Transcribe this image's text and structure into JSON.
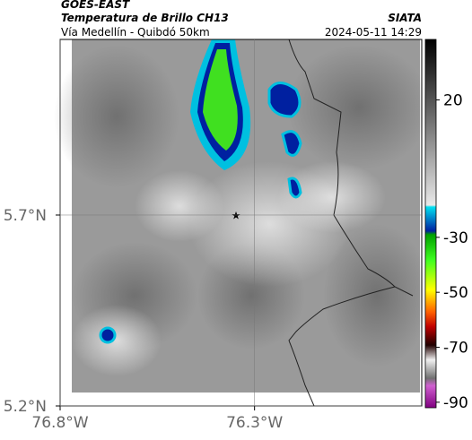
{
  "header": {
    "satellite": "GOES-EAST",
    "title": "Temperatura de Brillo CH13",
    "source": "SIATA",
    "subtitle": "Vía Medellín - Quibdó 50km",
    "datetime": "2024-05-11 14:29"
  },
  "map": {
    "xlim": [
      -76.8,
      -75.87
    ],
    "ylim": [
      5.2,
      6.16
    ],
    "xticks": [
      {
        "value": -76.8,
        "label": "76.8°W"
      },
      {
        "value": -76.3,
        "label": "76.3°W"
      }
    ],
    "yticks": [
      {
        "value": 5.2,
        "label": "5.2°N"
      },
      {
        "value": 5.7,
        "label": "5.7°N"
      }
    ],
    "grid": true
  },
  "colorbar": {
    "lim": [
      -92,
      42
    ],
    "ticks": [
      20,
      -30,
      -50,
      -70,
      -90
    ]
  }
}
